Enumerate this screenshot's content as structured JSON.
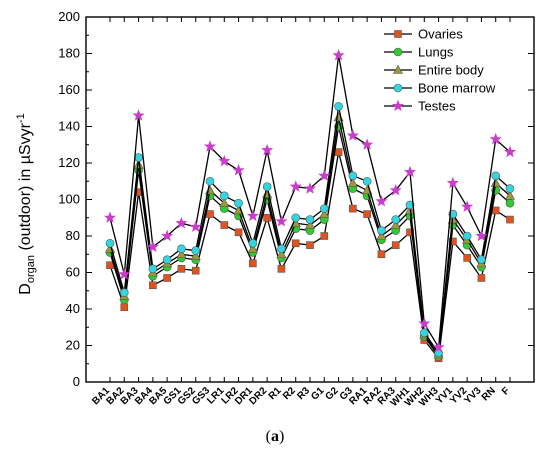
{
  "caption": {
    "open": "(",
    "letter": "a",
    "close": ")"
  },
  "chart_data": {
    "type": "line",
    "ylabel": {
      "prefix": "D",
      "subscript": "organ",
      "suffix": " (outdoor) in µSvyr",
      "superscript": "-1"
    },
    "xlabel": "",
    "ylim": [
      0,
      200
    ],
    "yticks": [
      0,
      20,
      40,
      60,
      80,
      100,
      120,
      140,
      160,
      180,
      200
    ],
    "legend_position": "top-right",
    "grid": false,
    "categories": [
      "BA1",
      "BA2",
      "BA3",
      "BA4",
      "BA5",
      "GS1",
      "GS2",
      "GS3",
      "LR1",
      "LR2",
      "DR1",
      "DR2",
      "R1",
      "R2",
      "R3",
      "G1",
      "G2",
      "G3",
      "RA1",
      "RA2",
      "RA3",
      "WH1",
      "WH2",
      "WH3",
      "YV1",
      "YV2",
      "YV3",
      "RN",
      "F"
    ],
    "series": [
      {
        "name": "Ovaries",
        "color": "#e0531e",
        "marker": "square",
        "values": [
          64,
          41,
          104,
          53,
          57,
          62,
          61,
          92,
          86,
          82,
          65,
          90,
          62,
          76,
          75,
          80,
          126,
          95,
          92,
          70,
          75,
          82,
          23,
          13,
          77,
          68,
          57,
          94,
          89
        ]
      },
      {
        "name": "Lungs",
        "color": "#2ecc2e",
        "marker": "circle",
        "values": [
          71,
          45,
          116,
          58,
          63,
          68,
          67,
          102,
          95,
          91,
          71,
          100,
          68,
          84,
          83,
          89,
          140,
          106,
          102,
          78,
          83,
          91,
          25,
          14,
          86,
          75,
          63,
          105,
          98
        ]
      },
      {
        "name": "Entire body",
        "color": "#9a9a3a",
        "marker": "triangle",
        "values": [
          73,
          47,
          119,
          60,
          65,
          70,
          69,
          105,
          98,
          94,
          73,
          103,
          70,
          87,
          86,
          92,
          145,
          109,
          105,
          80,
          86,
          94,
          26,
          15,
          89,
          78,
          65,
          109,
          102
        ]
      },
      {
        "name": "Bone marrow",
        "color": "#33d6e0",
        "marker": "circle",
        "values": [
          76,
          49,
          123,
          62,
          67,
          73,
          72,
          110,
          102,
          98,
          76,
          107,
          73,
          90,
          89,
          95,
          151,
          113,
          110,
          83,
          89,
          97,
          27,
          16,
          92,
          80,
          67,
          113,
          106
        ]
      },
      {
        "name": "Testes",
        "color": "#cc3ccc",
        "marker": "star",
        "values": [
          90,
          59,
          146,
          74,
          80,
          87,
          85,
          129,
          121,
          116,
          91,
          127,
          88,
          107,
          106,
          113,
          179,
          135,
          130,
          99,
          105,
          115,
          32,
          19,
          109,
          96,
          80,
          133,
          126
        ]
      }
    ]
  }
}
